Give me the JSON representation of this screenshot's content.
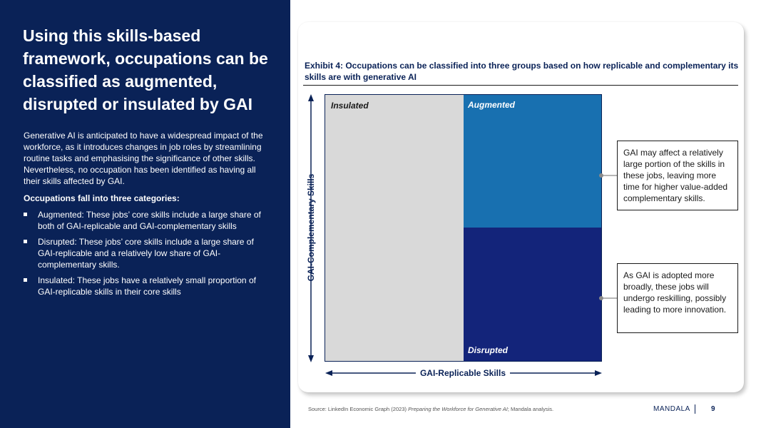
{
  "left_panel": {
    "title": "Using this skills-based framework, occupations can be classified as augmented, disrupted or insulated by GAI",
    "intro": "Generative AI is anticipated to have a widespread impact of the workforce, as it introduces changes in job roles by streamlining routine tasks and emphasising the significance of other skills. Nevertheless, no occupation has been identified as having all their skills affected by GAI.",
    "categories_heading": "Occupations fall into three categories:",
    "bullets": [
      "Augmented: These jobs’ core skills include a large share of both of GAI-replicable and GAI-complementary skills",
      "Disrupted: These jobs’ core skills include a large share of GAI-replicable and a relatively low share of GAI-complementary skills.",
      "Insulated: These jobs have a relatively small proportion of GAI-replicable skills in their core skills"
    ]
  },
  "exhibit": {
    "title": "Exhibit 4: Occupations can be classified into three groups based on how replicable and complementary its skills are with generative AI",
    "y_axis_label": "GAI-Complementary Skills",
    "x_axis_label": "GAI-Replicable Skills",
    "quadrants": {
      "insulated": "Insulated",
      "augmented": "Augmented",
      "disrupted": "Disrupted"
    },
    "callouts": {
      "augmented": "GAI may affect a relatively large portion of the skills in these jobs, leaving more time for higher value-added complementary skills.",
      "disrupted": "As GAI is adopted more broadly, these jobs will undergo reskilling, possibly leading to more innovation."
    },
    "colors": {
      "insulated": "#d9d9d9",
      "augmented": "#1870b0",
      "disrupted": "#13247a",
      "navy": "#0a2257"
    }
  },
  "footer": {
    "source_prefix": "Source: LinkedIn Economic Graph (2023) ",
    "source_title": "Preparing the Workforce for Generative AI",
    "source_suffix": "; Mandala analysis.",
    "brand": "MANDALA",
    "page_number": "9"
  }
}
